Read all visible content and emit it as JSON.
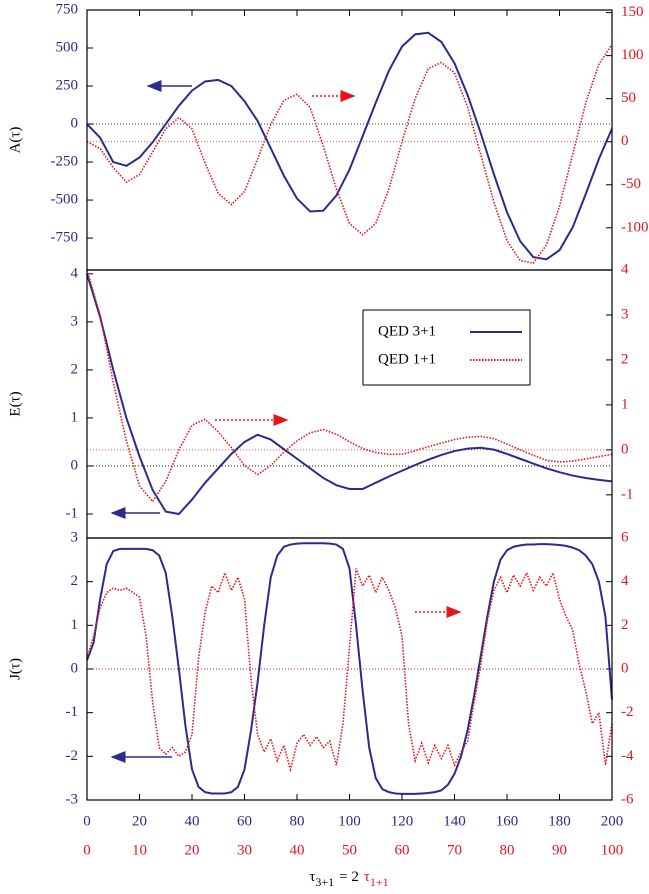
{
  "chart_data": {
    "type": "line",
    "axis_colors": {
      "y": "#2b2b8c",
      "y2": "#e8141c"
    },
    "xlim": [
      0,
      200
    ],
    "xticks": [
      0,
      20,
      40,
      60,
      80,
      100,
      120,
      140,
      160,
      180,
      200
    ],
    "x2lim": [
      0,
      100
    ],
    "x2ticks": [
      0,
      10,
      20,
      30,
      40,
      50,
      60,
      70,
      80,
      90,
      100
    ],
    "xlabel": {
      "main": "τ",
      "main_sub": "3+1",
      "link": "= 2",
      "twin": "τ",
      "twin_sub": "1+1"
    },
    "zero_lines": true,
    "panels": [
      {
        "ylabel": "A(τ)",
        "ylim": [
          -960,
          750
        ],
        "yticks": [
          -750,
          -500,
          -250,
          0,
          250,
          500,
          750
        ],
        "y2lim": [
          -149,
          153
        ],
        "y2ticks": [
          -100,
          -50,
          0,
          50,
          100,
          150
        ],
        "x": [
          0,
          5,
          10,
          15,
          20,
          25,
          30,
          35,
          40,
          45,
          50,
          55,
          60,
          65,
          70,
          75,
          80,
          85,
          90,
          95,
          100,
          105,
          110,
          115,
          120,
          125,
          130,
          135,
          140,
          145,
          150,
          155,
          160,
          165,
          170,
          175,
          180,
          185,
          190,
          195,
          200
        ],
        "series": [
          {
            "color": "#2b2b8c",
            "style": "solid",
            "values": [
              0,
              -90,
              -250,
              -275,
              -220,
              -120,
              0,
              120,
              220,
              280,
              290,
              250,
              150,
              20,
              -160,
              -340,
              -490,
              -575,
              -570,
              -470,
              -300,
              -80,
              140,
              350,
              510,
              590,
              600,
              540,
              400,
              190,
              -60,
              -330,
              -580,
              -770,
              -875,
              -890,
              -830,
              -680,
              -460,
              -230,
              -30
            ]
          },
          {
            "color": "#e8141c",
            "style": "dotted",
            "axis": "y2",
            "values": [
              0,
              -8,
              -30,
              -47,
              -38,
              -12,
              15,
              28,
              15,
              -25,
              -60,
              -73,
              -58,
              -20,
              20,
              48,
              55,
              40,
              -5,
              -55,
              -95,
              -108,
              -95,
              -55,
              0,
              50,
              85,
              92,
              80,
              40,
              -15,
              -70,
              -115,
              -138,
              -141,
              -120,
              -75,
              -15,
              45,
              90,
              113
            ]
          }
        ]
      },
      {
        "ylabel": "E(τ)",
        "ylim": [
          -1.5,
          4.08
        ],
        "yticks": [
          -1,
          0,
          1,
          2,
          3,
          4
        ],
        "y2lim": [
          -1.96,
          4
        ],
        "y2ticks": [
          -1,
          0,
          1,
          2,
          3,
          4
        ],
        "x": [
          0,
          5,
          10,
          15,
          20,
          25,
          30,
          35,
          40,
          45,
          50,
          55,
          60,
          65,
          70,
          75,
          80,
          85,
          90,
          95,
          100,
          105,
          110,
          115,
          120,
          125,
          130,
          135,
          140,
          145,
          150,
          155,
          160,
          165,
          170,
          175,
          180,
          185,
          190,
          195,
          200
        ],
        "series": [
          {
            "name": "QED 3+1",
            "color": "#2b2b8c",
            "style": "solid",
            "values": [
              4,
              3.1,
              2.0,
              1.0,
              0.2,
              -0.5,
              -0.95,
              -1.0,
              -0.7,
              -0.35,
              -0.05,
              0.25,
              0.5,
              0.65,
              0.55,
              0.35,
              0.15,
              -0.05,
              -0.25,
              -0.4,
              -0.48,
              -0.48,
              -0.35,
              -0.22,
              -0.1,
              0.02,
              0.13,
              0.23,
              0.31,
              0.36,
              0.38,
              0.34,
              0.25,
              0.15,
              0.05,
              -0.05,
              -0.13,
              -0.2,
              -0.25,
              -0.29,
              -0.32
            ]
          },
          {
            "name": "QED 1+1",
            "color": "#e8141c",
            "style": "dotted",
            "axis": "y2",
            "values": [
              4,
              3.0,
              1.5,
              0.2,
              -0.8,
              -1.15,
              -0.7,
              0.0,
              0.55,
              0.68,
              0.4,
              0.05,
              -0.35,
              -0.55,
              -0.35,
              -0.05,
              0.2,
              0.38,
              0.45,
              0.35,
              0.18,
              0.03,
              -0.06,
              -0.1,
              -0.1,
              -0.02,
              0.07,
              0.15,
              0.23,
              0.28,
              0.3,
              0.25,
              0.13,
              0.0,
              -0.12,
              -0.23,
              -0.27,
              -0.25,
              -0.2,
              -0.15,
              -0.1
            ]
          }
        ]
      },
      {
        "ylabel": "J(τ)",
        "ylim": [
          -3,
          3
        ],
        "yticks": [
          -3,
          -2,
          -1,
          0,
          1,
          2,
          3
        ],
        "y2lim": [
          -6,
          6
        ],
        "y2ticks": [
          -6,
          -4,
          -2,
          0,
          2,
          4,
          6
        ],
        "x": [
          0,
          2.5,
          5,
          7.5,
          10,
          12.5,
          15,
          17.5,
          20,
          22.5,
          25,
          27.5,
          30,
          32.5,
          35,
          37.5,
          40,
          42.5,
          45,
          47.5,
          50,
          52.5,
          55,
          57.5,
          60,
          62.5,
          65,
          67.5,
          70,
          72.5,
          75,
          77.5,
          80,
          82.5,
          85,
          87.5,
          90,
          92.5,
          95,
          97.5,
          100,
          102.5,
          105,
          107.5,
          110,
          112.5,
          115,
          117.5,
          120,
          122.5,
          125,
          127.5,
          130,
          132.5,
          135,
          137.5,
          140,
          142.5,
          145,
          147.5,
          150,
          152.5,
          155,
          157.5,
          160,
          162.5,
          165,
          167.5,
          170,
          172.5,
          175,
          177.5,
          180,
          182.5,
          185,
          187.5,
          190,
          192.5,
          195,
          197.5,
          200
        ],
        "series": [
          {
            "color": "#2b2b8c",
            "style": "solid",
            "values": [
              0.2,
              0.6,
              1.6,
              2.4,
              2.7,
              2.75,
              2.75,
              2.75,
              2.75,
              2.75,
              2.72,
              2.6,
              2.2,
              1.2,
              0,
              -1.3,
              -2.3,
              -2.7,
              -2.82,
              -2.85,
              -2.85,
              -2.85,
              -2.82,
              -2.7,
              -2.3,
              -1.4,
              -0.3,
              1.0,
              2.1,
              2.6,
              2.8,
              2.85,
              2.87,
              2.88,
              2.88,
              2.88,
              2.88,
              2.87,
              2.85,
              2.75,
              2.3,
              1.0,
              -0.5,
              -1.8,
              -2.5,
              -2.75,
              -2.82,
              -2.85,
              -2.86,
              -2.86,
              -2.86,
              -2.85,
              -2.84,
              -2.82,
              -2.78,
              -2.65,
              -2.4,
              -2.0,
              -1.4,
              -0.6,
              0.3,
              1.2,
              2.0,
              2.5,
              2.72,
              2.8,
              2.83,
              2.85,
              2.85,
              2.86,
              2.86,
              2.85,
              2.84,
              2.82,
              2.78,
              2.72,
              2.6,
              2.4,
              2.0,
              1.2,
              -0.7
            ]
          },
          {
            "color": "#e8141c",
            "style": "dotted",
            "axis": "y2",
            "values": [
              0.5,
              1.5,
              2.8,
              3.5,
              3.7,
              3.6,
              3.7,
              3.5,
              3.3,
              1.5,
              -1.5,
              -3.6,
              -3.9,
              -3.6,
              -4.0,
              -3.8,
              -3.0,
              0.5,
              2.6,
              3.8,
              3.5,
              4.4,
              3.6,
              4.2,
              3.2,
              -0.5,
              -3.0,
              -3.8,
              -3.2,
              -4.2,
              -3.5,
              -4.6,
              -3.4,
              -3.0,
              -3.5,
              -3.1,
              -3.6,
              -3.3,
              -4.4,
              -2.5,
              1.0,
              4.6,
              3.8,
              4.3,
              3.5,
              4.2,
              3.6,
              2.8,
              1.5,
              -2.5,
              -4.2,
              -3.4,
              -4.3,
              -3.5,
              -4.1,
              -3.5,
              -4.4,
              -3.8,
              -3.3,
              -1.5,
              0.2,
              2.2,
              3.6,
              4.2,
              3.5,
              4.3,
              3.8,
              4.4,
              3.6,
              4.2,
              3.8,
              4.4,
              3.2,
              2.4,
              1.8,
              0.2,
              -1.0,
              -2.5,
              -2.0,
              -4.4,
              -2.5
            ]
          }
        ]
      }
    ]
  }
}
